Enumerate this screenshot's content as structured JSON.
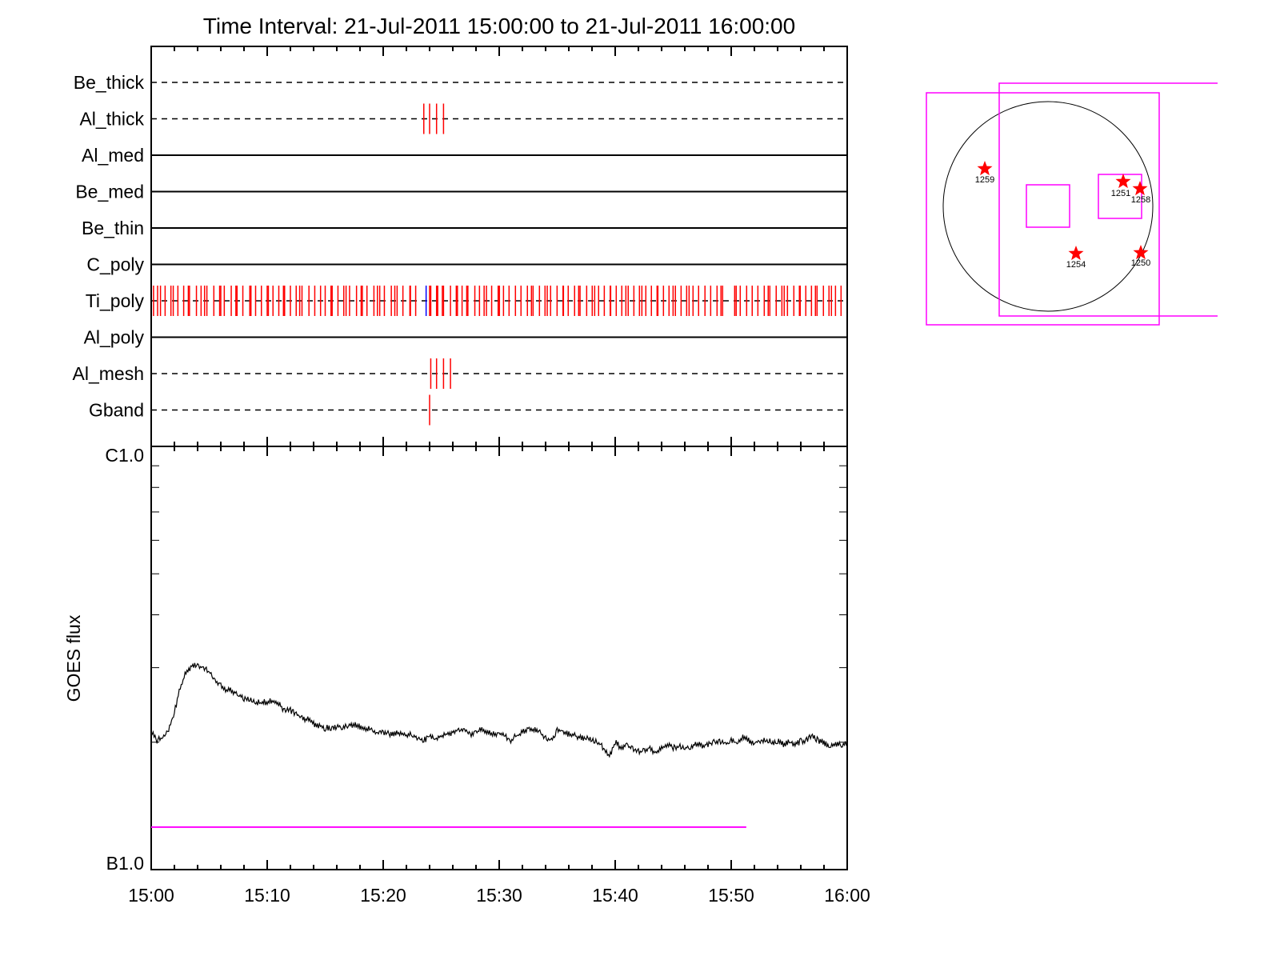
{
  "chart_data": [
    {
      "type": "event-timeline",
      "title": "Time Interval: 21-Jul-2011 15:00:00 to 21-Jul-2011 16:00:00",
      "x_unit": "minutes after 15:00",
      "xlim": [
        0,
        60
      ],
      "rows": [
        {
          "name": "Be_thick",
          "style": "dashed",
          "events": []
        },
        {
          "name": "Al_thick",
          "style": "dashed",
          "events": [
            23.5,
            24.0,
            24.6,
            25.2
          ]
        },
        {
          "name": "Al_med",
          "style": "solid",
          "events": []
        },
        {
          "name": "Be_med",
          "style": "solid",
          "events": []
        },
        {
          "name": "Be_thin",
          "style": "solid",
          "events": []
        },
        {
          "name": "C_poly",
          "style": "solid",
          "events": []
        },
        {
          "name": "Ti_poly",
          "style": "dashed",
          "events": [
            0.2,
            0.55,
            0.8,
            1.2,
            1.7,
            1.9,
            2.3,
            2.8,
            3.2,
            3.3,
            3.9,
            4.3,
            4.6,
            4.8,
            5.4,
            5.9,
            6.0,
            6.3,
            6.9,
            7.3,
            7.4,
            7.9,
            8.5,
            8.6,
            9.0,
            9.5,
            10.0,
            10.1,
            10.5,
            11.0,
            11.4,
            11.5,
            12.0,
            12.5,
            12.8,
            13.0,
            13.6,
            14.1,
            14.6,
            15.0,
            15.5,
            15.6,
            16.1,
            16.6,
            16.8,
            17.1,
            17.7,
            18.1,
            18.2,
            18.6,
            19.2,
            19.5,
            19.7,
            20.1,
            20.7,
            21.0,
            21.2,
            21.7,
            22.3,
            22.35,
            22.8,
            24.0,
            24.1,
            24.6,
            24.7,
            25.1,
            25.2,
            25.8,
            26.3,
            26.4,
            26.8,
            27.2,
            27.3,
            27.9,
            28.3,
            28.7,
            28.9,
            29.35,
            29.91,
            30.02,
            30.37,
            30.85,
            31.4,
            31.88,
            32.43,
            32.78,
            32.92,
            33.47,
            33.95,
            34.14,
            34.43,
            34.99,
            35.5,
            35.54,
            35.95,
            36.5,
            36.85,
            36.97,
            37.54,
            38.02,
            38.23,
            38.57,
            39.06,
            39.57,
            39.61,
            40.09,
            40.57,
            40.92,
            41.12,
            41.61,
            42.09,
            42.3,
            42.64,
            43.12,
            43.61,
            43.68,
            44.16,
            44.64,
            44.99,
            45.19,
            45.68,
            46.16,
            46.37,
            46.71,
            47.19,
            47.74,
            48.23,
            48.78,
            49.12,
            49.26,
            50.3,
            50.43,
            50.78,
            51.33,
            51.81,
            52.3,
            52.85,
            53.19,
            53.33,
            53.88,
            54.37,
            54.57,
            54.85,
            55.4,
            55.88,
            55.95,
            56.43,
            56.92,
            57.26,
            57.4,
            57.95,
            58.43,
            58.64,
            58.99,
            59.47
          ],
          "special_events": [
            {
              "t": 23.7,
              "color": "#0000ff"
            }
          ]
        },
        {
          "name": "Al_poly",
          "style": "solid",
          "events": []
        },
        {
          "name": "Al_mesh",
          "style": "dashed",
          "events": [
            24.1,
            24.6,
            25.2,
            25.8
          ]
        },
        {
          "name": "Gband",
          "style": "dashed",
          "events": [
            24.0
          ]
        }
      ],
      "event_color": "#ff0000"
    },
    {
      "type": "line",
      "ylabel": "GOES flux",
      "yscale": "log",
      "ylim": [
        1e-07,
        1e-06
      ],
      "ytick_labels": [
        "B1.0",
        "C1.0"
      ],
      "xlim": [
        0,
        60
      ],
      "xtick_labels": [
        "15:00",
        "15:10",
        "15:20",
        "15:30",
        "15:40",
        "15:50",
        "16:00"
      ],
      "x": [
        0,
        0.5,
        1,
        1.5,
        2,
        2.5,
        3,
        3.5,
        4,
        4.5,
        5,
        5.5,
        6,
        6.5,
        7,
        7.5,
        8,
        8.5,
        9,
        9.5,
        10,
        10.5,
        11,
        11.5,
        12,
        12.5,
        13,
        13.5,
        14,
        14.5,
        15,
        15.5,
        16,
        16.5,
        17,
        17.5,
        18,
        18.5,
        19,
        19.5,
        20,
        20.5,
        21,
        21.5,
        22,
        22.5,
        23,
        23.5,
        24,
        24.5,
        25,
        25.5,
        26,
        26.5,
        27,
        27.5,
        28,
        28.5,
        29,
        29.5,
        30,
        30.5,
        31,
        31.5,
        32,
        32.5,
        33,
        33.5,
        34,
        34.5,
        35,
        35.5,
        36,
        36.5,
        37,
        37.5,
        38,
        38.5,
        39,
        39.5,
        40,
        40.5,
        41,
        41.5,
        42,
        42.5,
        43,
        43.5,
        44,
        44.5,
        45,
        45.5,
        46,
        46.5,
        47,
        47.5,
        48,
        48.5,
        49,
        49.5,
        50,
        50.5,
        51,
        51.5,
        52,
        52.5,
        53,
        53.5,
        54,
        54.5,
        55,
        55.5,
        56,
        56.5,
        57,
        57.5,
        58,
        58.5,
        59,
        59.5,
        60
      ],
      "y": [
        2.11e-07,
        2.02e-07,
        2.05e-07,
        2.14e-07,
        2.36e-07,
        2.69e-07,
        2.93e-07,
        3.03e-07,
        3.03e-07,
        2.99e-07,
        2.93e-07,
        2.81e-07,
        2.72e-07,
        2.66e-07,
        2.64e-07,
        2.59e-07,
        2.54e-07,
        2.52e-07,
        2.49e-07,
        2.48e-07,
        2.49e-07,
        2.51e-07,
        2.46e-07,
        2.38e-07,
        2.38e-07,
        2.33e-07,
        2.29e-07,
        2.26e-07,
        2.21e-07,
        2.19e-07,
        2.16e-07,
        2.16e-07,
        2.18e-07,
        2.16e-07,
        2.19e-07,
        2.2e-07,
        2.18e-07,
        2.16e-07,
        2.14e-07,
        2.1e-07,
        2.11e-07,
        2.09e-07,
        2.1e-07,
        2.09e-07,
        2.07e-07,
        2.09e-07,
        2.05e-07,
        2.02e-07,
        2.07e-07,
        2.04e-07,
        2.07e-07,
        2.09e-07,
        2.1e-07,
        2.14e-07,
        2.13e-07,
        2.09e-07,
        2.11e-07,
        2.14e-07,
        2.11e-07,
        2.09e-07,
        2.11e-07,
        2.07e-07,
        2.02e-07,
        2.07e-07,
        2.11e-07,
        2.16e-07,
        2.14e-07,
        2.11e-07,
        2.05e-07,
        2.02e-07,
        2.14e-07,
        2.11e-07,
        2.09e-07,
        2.07e-07,
        2.05e-07,
        2.05e-07,
        2.02e-07,
        2e-07,
        1.94e-07,
        1.85e-07,
        2e-07,
        1.94e-07,
        1.96e-07,
        1.93e-07,
        1.9e-07,
        1.91e-07,
        1.94e-07,
        1.88e-07,
        1.94e-07,
        1.98e-07,
        1.94e-07,
        1.96e-07,
        1.94e-07,
        1.95e-07,
        1.98e-07,
        1.96e-07,
        1.98e-07,
        2e-07,
        2e-07,
        1.98e-07,
        2.02e-07,
        1.98e-07,
        2.05e-07,
        2.02e-07,
        2e-07,
        2.02e-07,
        2.02e-07,
        2e-07,
        2.01e-07,
        1.98e-07,
        2e-07,
        1.98e-07,
        2.01e-07,
        2.02e-07,
        2.07e-07,
        2.02e-07,
        2e-07,
        1.94e-07,
        1.98e-07,
        1.98e-07,
        1.98e-07
      ],
      "line_color": "#000000",
      "reference_line": {
        "y": 1.26e-07,
        "x": [
          0,
          51.3
        ],
        "color": "#ff00ff"
      }
    },
    {
      "type": "solar-disk-map",
      "active_regions": [
        "1259",
        "1251",
        "1258",
        "1254",
        "1250"
      ],
      "marker_color": "#ff0000",
      "fov_color": "#ff00ff"
    }
  ]
}
